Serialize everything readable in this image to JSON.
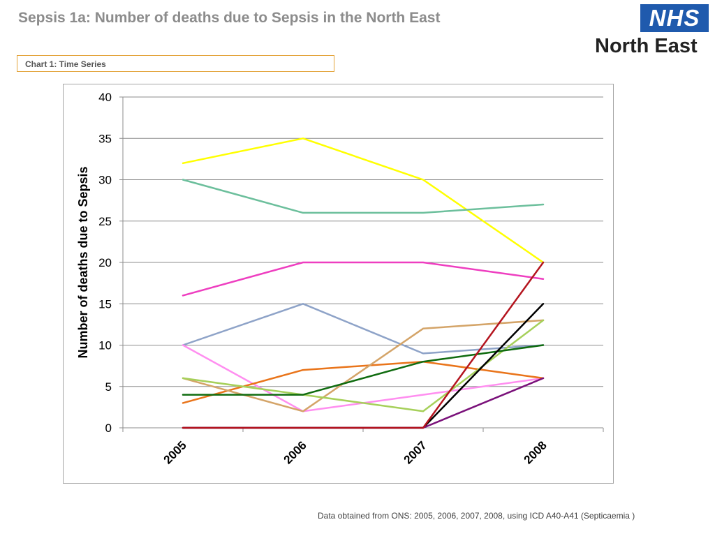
{
  "header": {
    "title": "Sepsis 1a: Number of deaths due to Sepsis in the North East"
  },
  "logo": {
    "brand": "NHS",
    "region": "North East",
    "brand_color": "#1f5aad"
  },
  "chart_caption": "Chart 1: Time Series",
  "footer": {
    "source": "Data obtained from ONS: 2005, 2006, 2007, 2008, using ICD A40-A41 (Septicaemia )"
  },
  "chart_data": {
    "type": "line",
    "title": "",
    "xlabel": "",
    "ylabel": "Number of deaths due to Sepsis",
    "categories": [
      "2005",
      "2006",
      "2007",
      "2008"
    ],
    "ylim": [
      0,
      40
    ],
    "yticks": [
      0,
      5,
      10,
      15,
      20,
      25,
      30,
      35,
      40
    ],
    "grid": true,
    "legend": "none",
    "series": [
      {
        "color": "#ffff00",
        "values": [
          32,
          35,
          30,
          20
        ]
      },
      {
        "color": "#6cbf9c",
        "values": [
          30,
          26,
          26,
          27
        ]
      },
      {
        "color": "#ee3ec0",
        "values": [
          16,
          20,
          20,
          18
        ]
      },
      {
        "color": "#8ea3c8",
        "values": [
          10,
          15,
          9,
          10
        ]
      },
      {
        "color": "#ff8ef0",
        "values": [
          10,
          2,
          4,
          6
        ]
      },
      {
        "color": "#e9741a",
        "values": [
          3,
          7,
          8,
          6
        ]
      },
      {
        "color": "#d4a468",
        "values": [
          6,
          2,
          12,
          13
        ]
      },
      {
        "color": "#a6d05a",
        "values": [
          6,
          4,
          2,
          13
        ]
      },
      {
        "color": "#0f6b0f",
        "values": [
          4,
          4,
          8,
          10
        ]
      },
      {
        "color": "#000000",
        "values": [
          0,
          0,
          0,
          15
        ]
      },
      {
        "color": "#7a117a",
        "values": [
          0,
          0,
          0,
          6
        ]
      },
      {
        "color": "#b4141e",
        "values": [
          0,
          0,
          0,
          20
        ]
      }
    ]
  }
}
